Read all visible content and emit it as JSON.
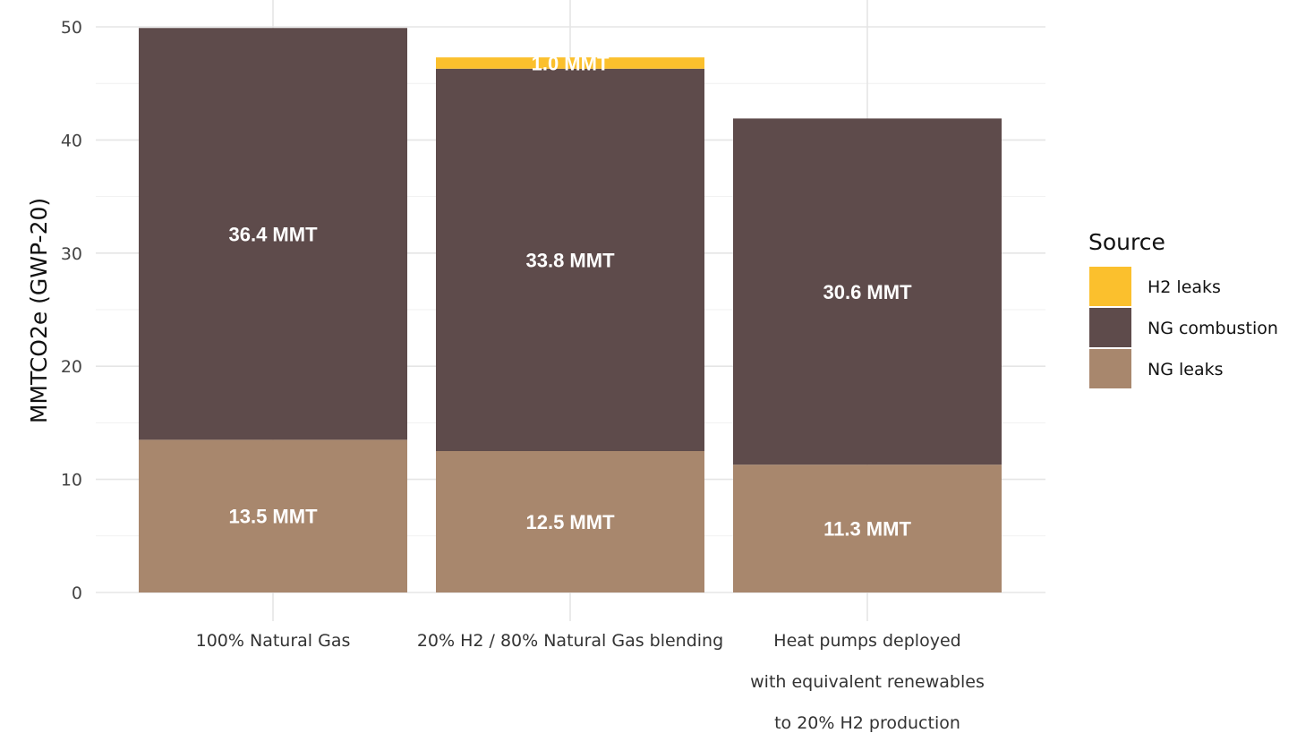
{
  "chart_data": {
    "type": "bar",
    "stacked": true,
    "title": "",
    "ylabel": "MMTCO2e (GWP-20)",
    "xlabel": "",
    "ylim": [
      0,
      50
    ],
    "yticks": [
      0,
      10,
      20,
      30,
      40,
      50
    ],
    "grid": true,
    "categories": [
      [
        "100% Natural Gas"
      ],
      [
        "20% H2 / 80% Natural Gas blending"
      ],
      [
        "Heat pumps deployed",
        "with equivalent renewables",
        "to 20% H2 production"
      ]
    ],
    "series": [
      {
        "name": "NG leaks",
        "color": "#a8876d",
        "values": [
          13.5,
          12.5,
          11.3
        ],
        "labels": [
          "13.5 MMT",
          "12.5 MMT",
          "11.3 MMT"
        ]
      },
      {
        "name": "NG combustion",
        "color": "#5e4b4b",
        "values": [
          36.4,
          33.8,
          30.6
        ],
        "labels": [
          "36.4 MMT",
          "33.8 MMT",
          "30.6 MMT"
        ]
      },
      {
        "name": "H2 leaks",
        "color": "#fbc02d",
        "values": [
          0,
          1.0,
          0
        ],
        "labels": [
          "",
          "1.0 MMT",
          ""
        ]
      }
    ],
    "legend": {
      "title": "Source",
      "placement": "right",
      "order": [
        "H2 leaks",
        "NG combustion",
        "NG leaks"
      ]
    }
  }
}
